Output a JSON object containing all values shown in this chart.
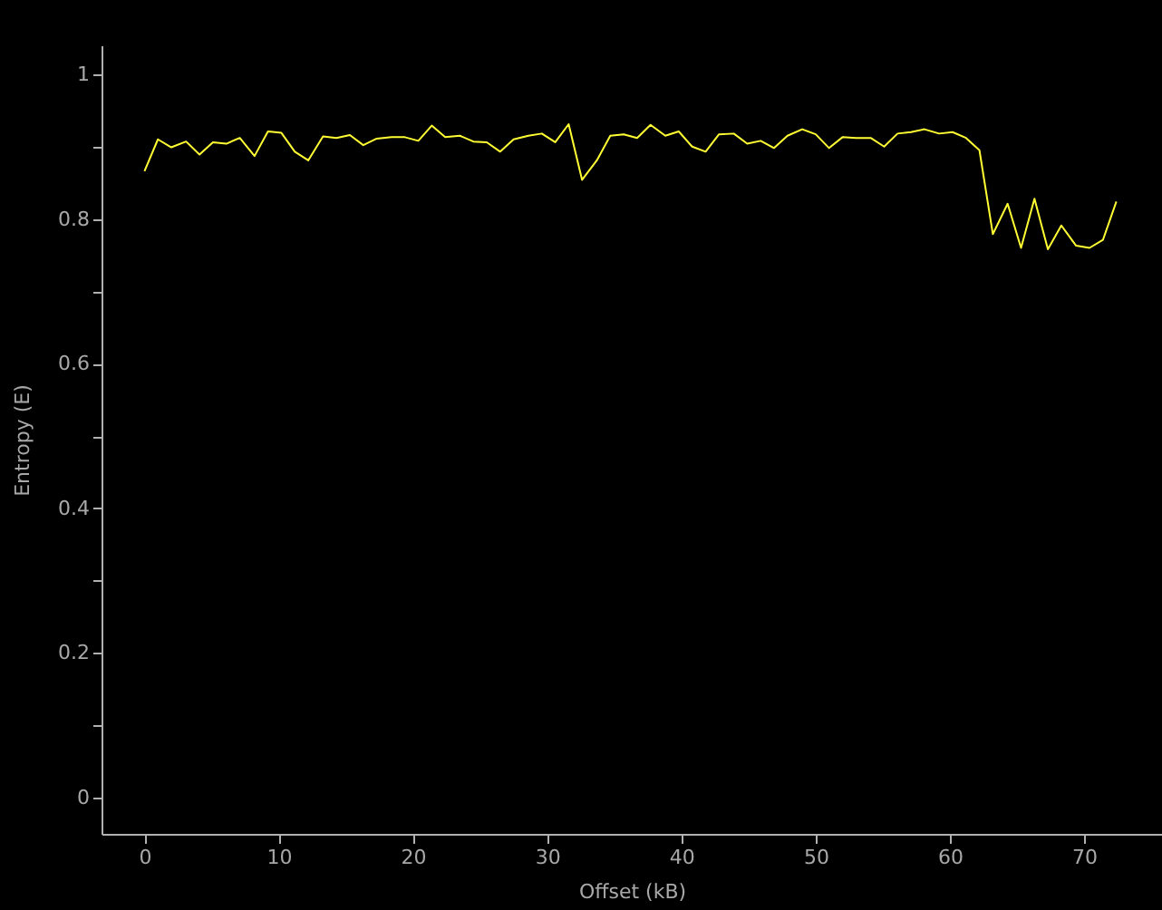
{
  "chart_data": {
    "type": "line",
    "xlabel": "Offset (kB)",
    "ylabel": "Entropy (E)",
    "x": [
      0,
      1,
      2,
      3.1,
      4.1,
      5.1,
      6.1,
      7.1,
      8.2,
      9.2,
      10.2,
      11.2,
      12.2,
      13.3,
      14.3,
      15.3,
      16.3,
      17.3,
      18.4,
      19.4,
      20.4,
      21.4,
      22.4,
      23.5,
      24.5,
      25.5,
      26.5,
      27.5,
      28.6,
      29.6,
      30.6,
      31.6,
      32.6,
      33.7,
      34.7,
      35.7,
      36.7,
      37.7,
      38.8,
      39.8,
      40.8,
      41.8,
      42.8,
      43.9,
      44.9,
      45.9,
      46.9,
      47.9,
      49,
      50,
      51,
      52,
      53,
      54.1,
      55.1,
      56.1,
      57.1,
      58.1,
      59.2,
      60.2,
      61.2,
      62.2,
      63.2,
      64.3,
      65.3,
      66.3,
      67.3,
      68.3,
      69.4,
      70.4,
      71.4,
      72.4
    ],
    "series": [
      {
        "color": "#ffff33",
        "values": [
          0.866,
          0.91,
          0.899,
          0.907,
          0.889,
          0.906,
          0.904,
          0.912,
          0.887,
          0.921,
          0.919,
          0.893,
          0.881,
          0.914,
          0.912,
          0.916,
          0.902,
          0.911,
          0.913,
          0.913,
          0.908,
          0.929,
          0.913,
          0.915,
          0.907,
          0.906,
          0.893,
          0.91,
          0.915,
          0.918,
          0.906,
          0.931,
          0.854,
          0.881,
          0.915,
          0.917,
          0.912,
          0.93,
          0.915,
          0.921,
          0.9,
          0.893,
          0.917,
          0.918,
          0.904,
          0.908,
          0.898,
          0.915,
          0.924,
          0.917,
          0.898,
          0.913,
          0.912,
          0.912,
          0.9,
          0.918,
          0.92,
          0.924,
          0.918,
          0.92,
          0.912,
          0.895,
          0.779,
          0.821,
          0.76,
          0.828,
          0.758,
          0.791,
          0.763,
          0.76,
          0.771,
          0.824
        ]
      }
    ],
    "xlim": [
      -3.2,
      75.8
    ],
    "ylim": [
      -0.05,
      1.04
    ],
    "xticks": [
      0,
      10,
      20,
      30,
      40,
      50,
      60,
      70
    ],
    "yticks": [
      0,
      {
        "value": 0.1,
        "label": null
      },
      0.2,
      {
        "value": 0.3,
        "label": null
      },
      0.4,
      {
        "value": 0.5,
        "label": null
      },
      0.6,
      {
        "value": 0.7,
        "label": null
      },
      0.8,
      {
        "value": 0.9,
        "label": null
      },
      1
    ],
    "grid": false,
    "legend": false,
    "marker": "none",
    "line_style": "solid"
  }
}
